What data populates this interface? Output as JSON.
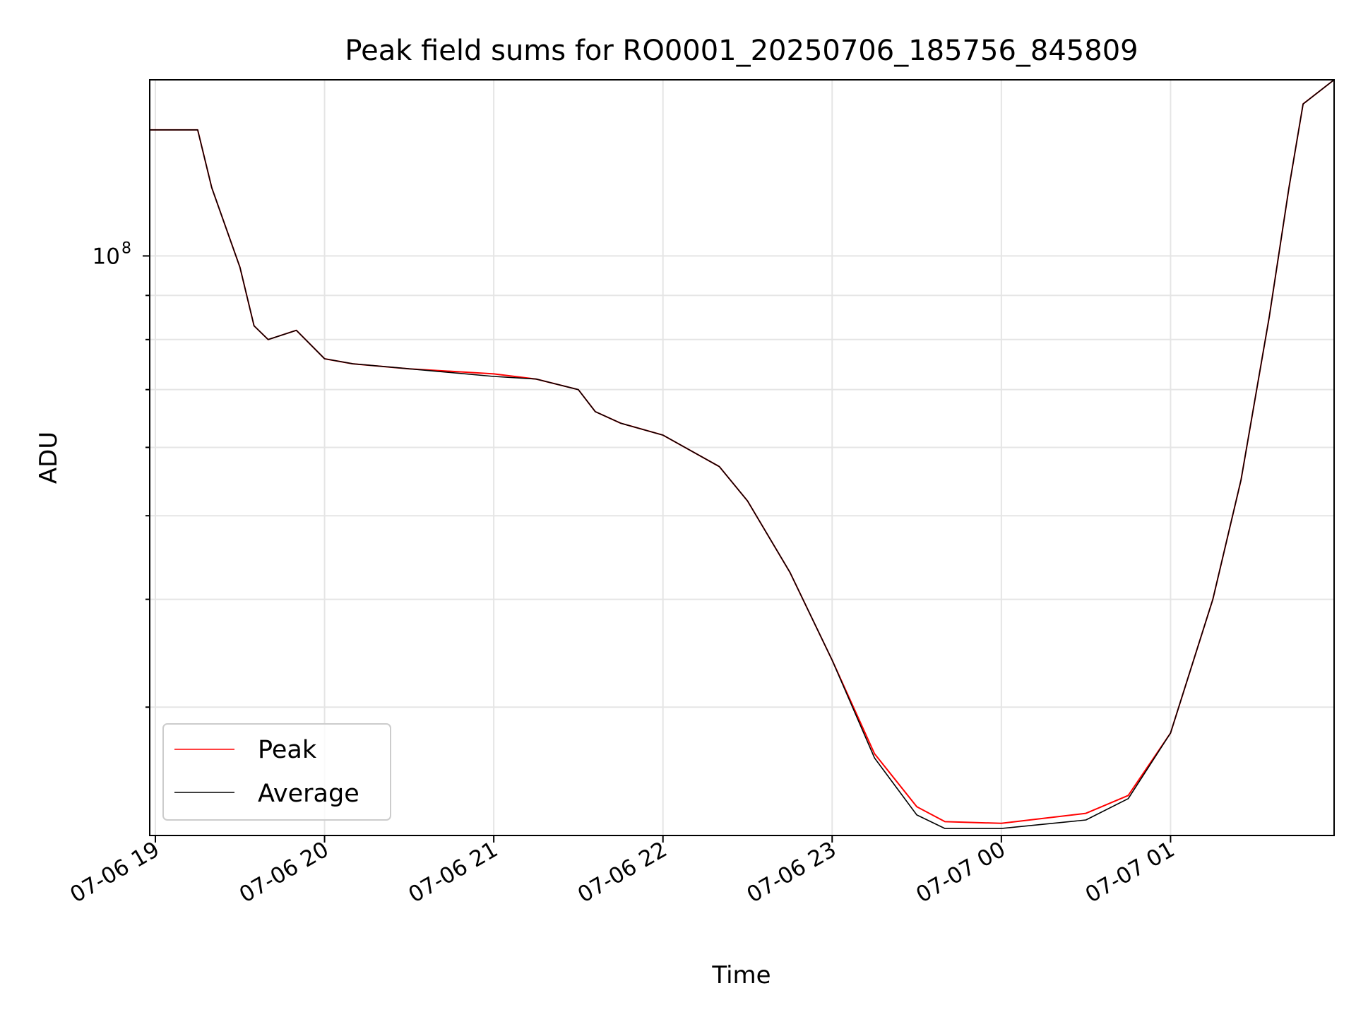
{
  "chart_data": {
    "type": "line",
    "title": "Peak field sums for RO0001_20250706_185756_845809",
    "xlabel": "Time",
    "ylabel": "ADU",
    "yscale": "log",
    "grid": true,
    "legend_position": "lower-left",
    "xlim": [
      "2025-07-06T18:58",
      "2025-07-07T01:58"
    ],
    "ylim": [
      21300000,
      160000000
    ],
    "x_ticks": [
      {
        "time": "2025-07-06T19:00",
        "label": "07-06 19"
      },
      {
        "time": "2025-07-06T20:00",
        "label": "07-06 20"
      },
      {
        "time": "2025-07-06T21:00",
        "label": "07-06 21"
      },
      {
        "time": "2025-07-06T22:00",
        "label": "07-06 22"
      },
      {
        "time": "2025-07-06T23:00",
        "label": "07-06 23"
      },
      {
        "time": "2025-07-07T00:00",
        "label": "07-07 00"
      },
      {
        "time": "2025-07-07T01:00",
        "label": "07-07 01"
      }
    ],
    "y_ticks": [
      {
        "value": 100000000,
        "label": "10",
        "exponent": "8"
      }
    ],
    "series": [
      {
        "name": "Peak",
        "color": "#ff0000",
        "x": [
          "2025-07-06T18:58",
          "2025-07-06T19:10",
          "2025-07-06T19:15",
          "2025-07-06T19:20",
          "2025-07-06T19:30",
          "2025-07-06T19:35",
          "2025-07-06T19:40",
          "2025-07-06T19:50",
          "2025-07-06T20:00",
          "2025-07-06T20:10",
          "2025-07-06T20:30",
          "2025-07-06T21:00",
          "2025-07-06T21:15",
          "2025-07-06T21:30",
          "2025-07-06T21:36",
          "2025-07-06T21:45",
          "2025-07-06T22:00",
          "2025-07-06T22:20",
          "2025-07-06T22:30",
          "2025-07-06T22:45",
          "2025-07-06T23:00",
          "2025-07-06T23:15",
          "2025-07-06T23:30",
          "2025-07-06T23:40",
          "2025-07-07T00:00",
          "2025-07-07T00:30",
          "2025-07-07T00:45",
          "2025-07-07T01:00",
          "2025-07-07T01:15",
          "2025-07-07T01:25",
          "2025-07-07T01:35",
          "2025-07-07T01:42",
          "2025-07-07T01:47",
          "2025-07-07T01:58"
        ],
        "y": [
          140000000,
          140000000,
          140000000,
          120000000,
          97000000,
          83000000,
          80000000,
          82000000,
          76000000,
          75000000,
          74000000,
          73000000,
          72000000,
          70000000,
          66000000,
          64000000,
          62000000,
          57000000,
          52000000,
          43000000,
          34000000,
          26500000,
          23000000,
          22100000,
          22000000,
          22600000,
          23700000,
          28000000,
          40000000,
          55000000,
          85000000,
          120000000,
          150000000,
          160000000
        ]
      },
      {
        "name": "Average",
        "color": "#000000",
        "x": [
          "2025-07-06T18:58",
          "2025-07-06T19:10",
          "2025-07-06T19:15",
          "2025-07-06T19:20",
          "2025-07-06T19:30",
          "2025-07-06T19:35",
          "2025-07-06T19:40",
          "2025-07-06T19:50",
          "2025-07-06T20:00",
          "2025-07-06T20:10",
          "2025-07-06T20:30",
          "2025-07-06T21:00",
          "2025-07-06T21:15",
          "2025-07-06T21:30",
          "2025-07-06T21:36",
          "2025-07-06T21:45",
          "2025-07-06T22:00",
          "2025-07-06T22:20",
          "2025-07-06T22:30",
          "2025-07-06T22:45",
          "2025-07-06T23:00",
          "2025-07-06T23:15",
          "2025-07-06T23:30",
          "2025-07-06T23:40",
          "2025-07-07T00:00",
          "2025-07-07T00:30",
          "2025-07-07T00:45",
          "2025-07-07T01:00",
          "2025-07-07T01:15",
          "2025-07-07T01:25",
          "2025-07-07T01:35",
          "2025-07-07T01:42",
          "2025-07-07T01:47",
          "2025-07-07T01:58"
        ],
        "y": [
          140000000,
          140000000,
          140000000,
          120000000,
          97000000,
          83000000,
          80000000,
          82000000,
          76000000,
          75000000,
          74000000,
          72500000,
          72000000,
          70000000,
          66000000,
          64000000,
          62000000,
          57000000,
          52000000,
          43000000,
          34000000,
          26200000,
          22500000,
          21700000,
          21700000,
          22200000,
          23500000,
          28000000,
          40000000,
          55000000,
          85000000,
          120000000,
          150000000,
          160000000
        ]
      }
    ]
  }
}
